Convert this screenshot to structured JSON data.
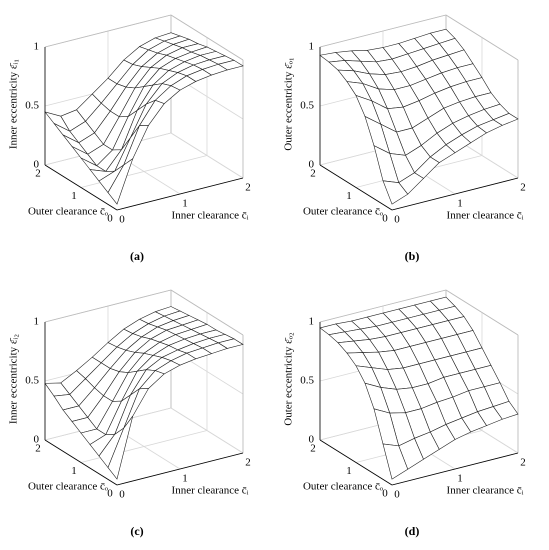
{
  "chart_data": [
    {
      "type": "surface",
      "panel_label": "(a)",
      "x_label": "Inner clearance c̄ᵢ",
      "y_label": "Outer clearance c̄ₒ",
      "z_label": "Inner eccentricity ε̄ᵢ₁",
      "x": [
        0,
        0.25,
        0.5,
        0.75,
        1,
        1.25,
        1.5,
        1.75,
        2
      ],
      "y": [
        0,
        0.25,
        0.5,
        0.75,
        1,
        1.25,
        1.5,
        1.75,
        2
      ],
      "z": [
        [
          0.05,
          0.4,
          0.65,
          0.8,
          0.88,
          0.92,
          0.94,
          0.95,
          0.95
        ],
        [
          0.1,
          0.3,
          0.6,
          0.78,
          0.87,
          0.92,
          0.94,
          0.95,
          0.95
        ],
        [
          0.15,
          0.2,
          0.45,
          0.7,
          0.84,
          0.9,
          0.93,
          0.94,
          0.94
        ],
        [
          0.2,
          0.15,
          0.3,
          0.6,
          0.78,
          0.87,
          0.91,
          0.93,
          0.93
        ],
        [
          0.25,
          0.15,
          0.25,
          0.5,
          0.72,
          0.84,
          0.89,
          0.91,
          0.92
        ],
        [
          0.3,
          0.2,
          0.25,
          0.45,
          0.66,
          0.8,
          0.87,
          0.9,
          0.9
        ],
        [
          0.35,
          0.25,
          0.3,
          0.45,
          0.62,
          0.76,
          0.84,
          0.88,
          0.89
        ],
        [
          0.4,
          0.3,
          0.35,
          0.47,
          0.6,
          0.73,
          0.82,
          0.86,
          0.87
        ],
        [
          0.45,
          0.38,
          0.4,
          0.5,
          0.6,
          0.72,
          0.8,
          0.84,
          0.85
        ]
      ],
      "xlim": [
        0,
        2
      ],
      "ylim": [
        0,
        2
      ],
      "zlim": [
        0,
        1
      ],
      "xticks": [
        0,
        1,
        2
      ],
      "yticks": [
        0,
        1,
        2
      ],
      "zticks": [
        0,
        0.5,
        1
      ],
      "color": "#222222",
      "grid": true
    },
    {
      "type": "surface",
      "panel_label": "(b)",
      "x_label": "Inner clearance c̄ᵢ",
      "y_label": "Outer clearance c̄ₒ",
      "z_label": "Outer eccentricity ε̄ₒ₁",
      "x": [
        0,
        0.25,
        0.5,
        0.75,
        1,
        1.25,
        1.5,
        1.75,
        2
      ],
      "y": [
        0,
        0.25,
        0.5,
        0.75,
        1,
        1.25,
        1.5,
        1.75,
        2
      ],
      "z": [
        [
          0.05,
          0.1,
          0.2,
          0.3,
          0.35,
          0.4,
          0.45,
          0.48,
          0.5
        ],
        [
          0.2,
          0.15,
          0.2,
          0.3,
          0.37,
          0.42,
          0.46,
          0.48,
          0.5
        ],
        [
          0.45,
          0.35,
          0.3,
          0.35,
          0.42,
          0.47,
          0.5,
          0.52,
          0.53
        ],
        [
          0.65,
          0.55,
          0.45,
          0.45,
          0.5,
          0.55,
          0.57,
          0.58,
          0.58
        ],
        [
          0.78,
          0.7,
          0.6,
          0.58,
          0.6,
          0.63,
          0.65,
          0.66,
          0.66
        ],
        [
          0.85,
          0.8,
          0.72,
          0.68,
          0.68,
          0.7,
          0.72,
          0.73,
          0.73
        ],
        [
          0.9,
          0.86,
          0.8,
          0.76,
          0.75,
          0.76,
          0.78,
          0.79,
          0.8
        ],
        [
          0.92,
          0.9,
          0.86,
          0.82,
          0.81,
          0.82,
          0.83,
          0.84,
          0.85
        ],
        [
          0.93,
          0.92,
          0.9,
          0.87,
          0.86,
          0.86,
          0.87,
          0.88,
          0.88
        ]
      ],
      "xlim": [
        0,
        2
      ],
      "ylim": [
        0,
        2
      ],
      "zlim": [
        0,
        1
      ],
      "xticks": [
        0,
        1,
        2
      ],
      "yticks": [
        0,
        1,
        2
      ],
      "zticks": [
        0,
        0.5,
        1
      ],
      "color": "#222222",
      "grid": true
    },
    {
      "type": "surface",
      "panel_label": "(c)",
      "x_label": "Inner clearance c̄ᵢ",
      "y_label": "Outer clearance c̄ₒ",
      "z_label": "Inner eccentricity ε̄ᵢ₂",
      "x": [
        0,
        0.25,
        0.5,
        0.75,
        1,
        1.25,
        1.5,
        1.75,
        2
      ],
      "y": [
        0,
        0.25,
        0.5,
        0.75,
        1,
        1.25,
        1.5,
        1.75,
        2
      ],
      "z": [
        [
          0.05,
          0.55,
          0.75,
          0.84,
          0.88,
          0.9,
          0.91,
          0.92,
          0.92
        ],
        [
          0.1,
          0.4,
          0.7,
          0.82,
          0.87,
          0.9,
          0.91,
          0.92,
          0.92
        ],
        [
          0.15,
          0.3,
          0.6,
          0.78,
          0.85,
          0.88,
          0.9,
          0.91,
          0.91
        ],
        [
          0.2,
          0.25,
          0.5,
          0.72,
          0.82,
          0.87,
          0.89,
          0.9,
          0.9
        ],
        [
          0.25,
          0.25,
          0.45,
          0.66,
          0.79,
          0.85,
          0.88,
          0.89,
          0.9
        ],
        [
          0.3,
          0.3,
          0.45,
          0.62,
          0.75,
          0.83,
          0.87,
          0.88,
          0.89
        ],
        [
          0.35,
          0.35,
          0.47,
          0.6,
          0.72,
          0.8,
          0.85,
          0.87,
          0.88
        ],
        [
          0.42,
          0.4,
          0.5,
          0.6,
          0.7,
          0.78,
          0.83,
          0.86,
          0.87
        ],
        [
          0.48,
          0.45,
          0.52,
          0.6,
          0.69,
          0.77,
          0.82,
          0.85,
          0.86
        ]
      ],
      "xlim": [
        0,
        2
      ],
      "ylim": [
        0,
        2
      ],
      "zlim": [
        0,
        1
      ],
      "xticks": [
        0,
        1,
        2
      ],
      "yticks": [
        0,
        1,
        2
      ],
      "zticks": [
        0,
        0.5,
        1
      ],
      "color": "#222222",
      "grid": true
    },
    {
      "type": "surface",
      "panel_label": "(d)",
      "x_label": "Inner clearance c̄ᵢ",
      "y_label": "Outer clearance c̄ₒ",
      "z_label": "Outer eccentricity ε̄ₒ₂",
      "x": [
        0,
        0.25,
        0.5,
        0.75,
        1,
        1.25,
        1.5,
        1.75,
        2
      ],
      "y": [
        0,
        0.25,
        0.5,
        0.75,
        1,
        1.25,
        1.5,
        1.75,
        2
      ],
      "z": [
        [
          0.05,
          0.1,
          0.15,
          0.2,
          0.25,
          0.28,
          0.3,
          0.32,
          0.33
        ],
        [
          0.3,
          0.25,
          0.28,
          0.3,
          0.33,
          0.35,
          0.37,
          0.38,
          0.39
        ],
        [
          0.55,
          0.48,
          0.45,
          0.45,
          0.47,
          0.48,
          0.5,
          0.5,
          0.5
        ],
        [
          0.72,
          0.65,
          0.6,
          0.58,
          0.58,
          0.6,
          0.6,
          0.6,
          0.6
        ],
        [
          0.82,
          0.77,
          0.72,
          0.7,
          0.7,
          0.7,
          0.7,
          0.7,
          0.7
        ],
        [
          0.88,
          0.85,
          0.82,
          0.8,
          0.8,
          0.8,
          0.8,
          0.8,
          0.8
        ],
        [
          0.92,
          0.9,
          0.88,
          0.87,
          0.87,
          0.87,
          0.87,
          0.87,
          0.87
        ],
        [
          0.94,
          0.93,
          0.92,
          0.91,
          0.91,
          0.91,
          0.91,
          0.91,
          0.91
        ],
        [
          0.95,
          0.95,
          0.94,
          0.94,
          0.94,
          0.94,
          0.94,
          0.94,
          0.94
        ]
      ],
      "xlim": [
        0,
        2
      ],
      "ylim": [
        0,
        2
      ],
      "zlim": [
        0,
        1
      ],
      "xticks": [
        0,
        1,
        2
      ],
      "yticks": [
        0,
        1,
        2
      ],
      "zticks": [
        0,
        0.5,
        1
      ],
      "color": "#222222",
      "grid": true
    }
  ]
}
